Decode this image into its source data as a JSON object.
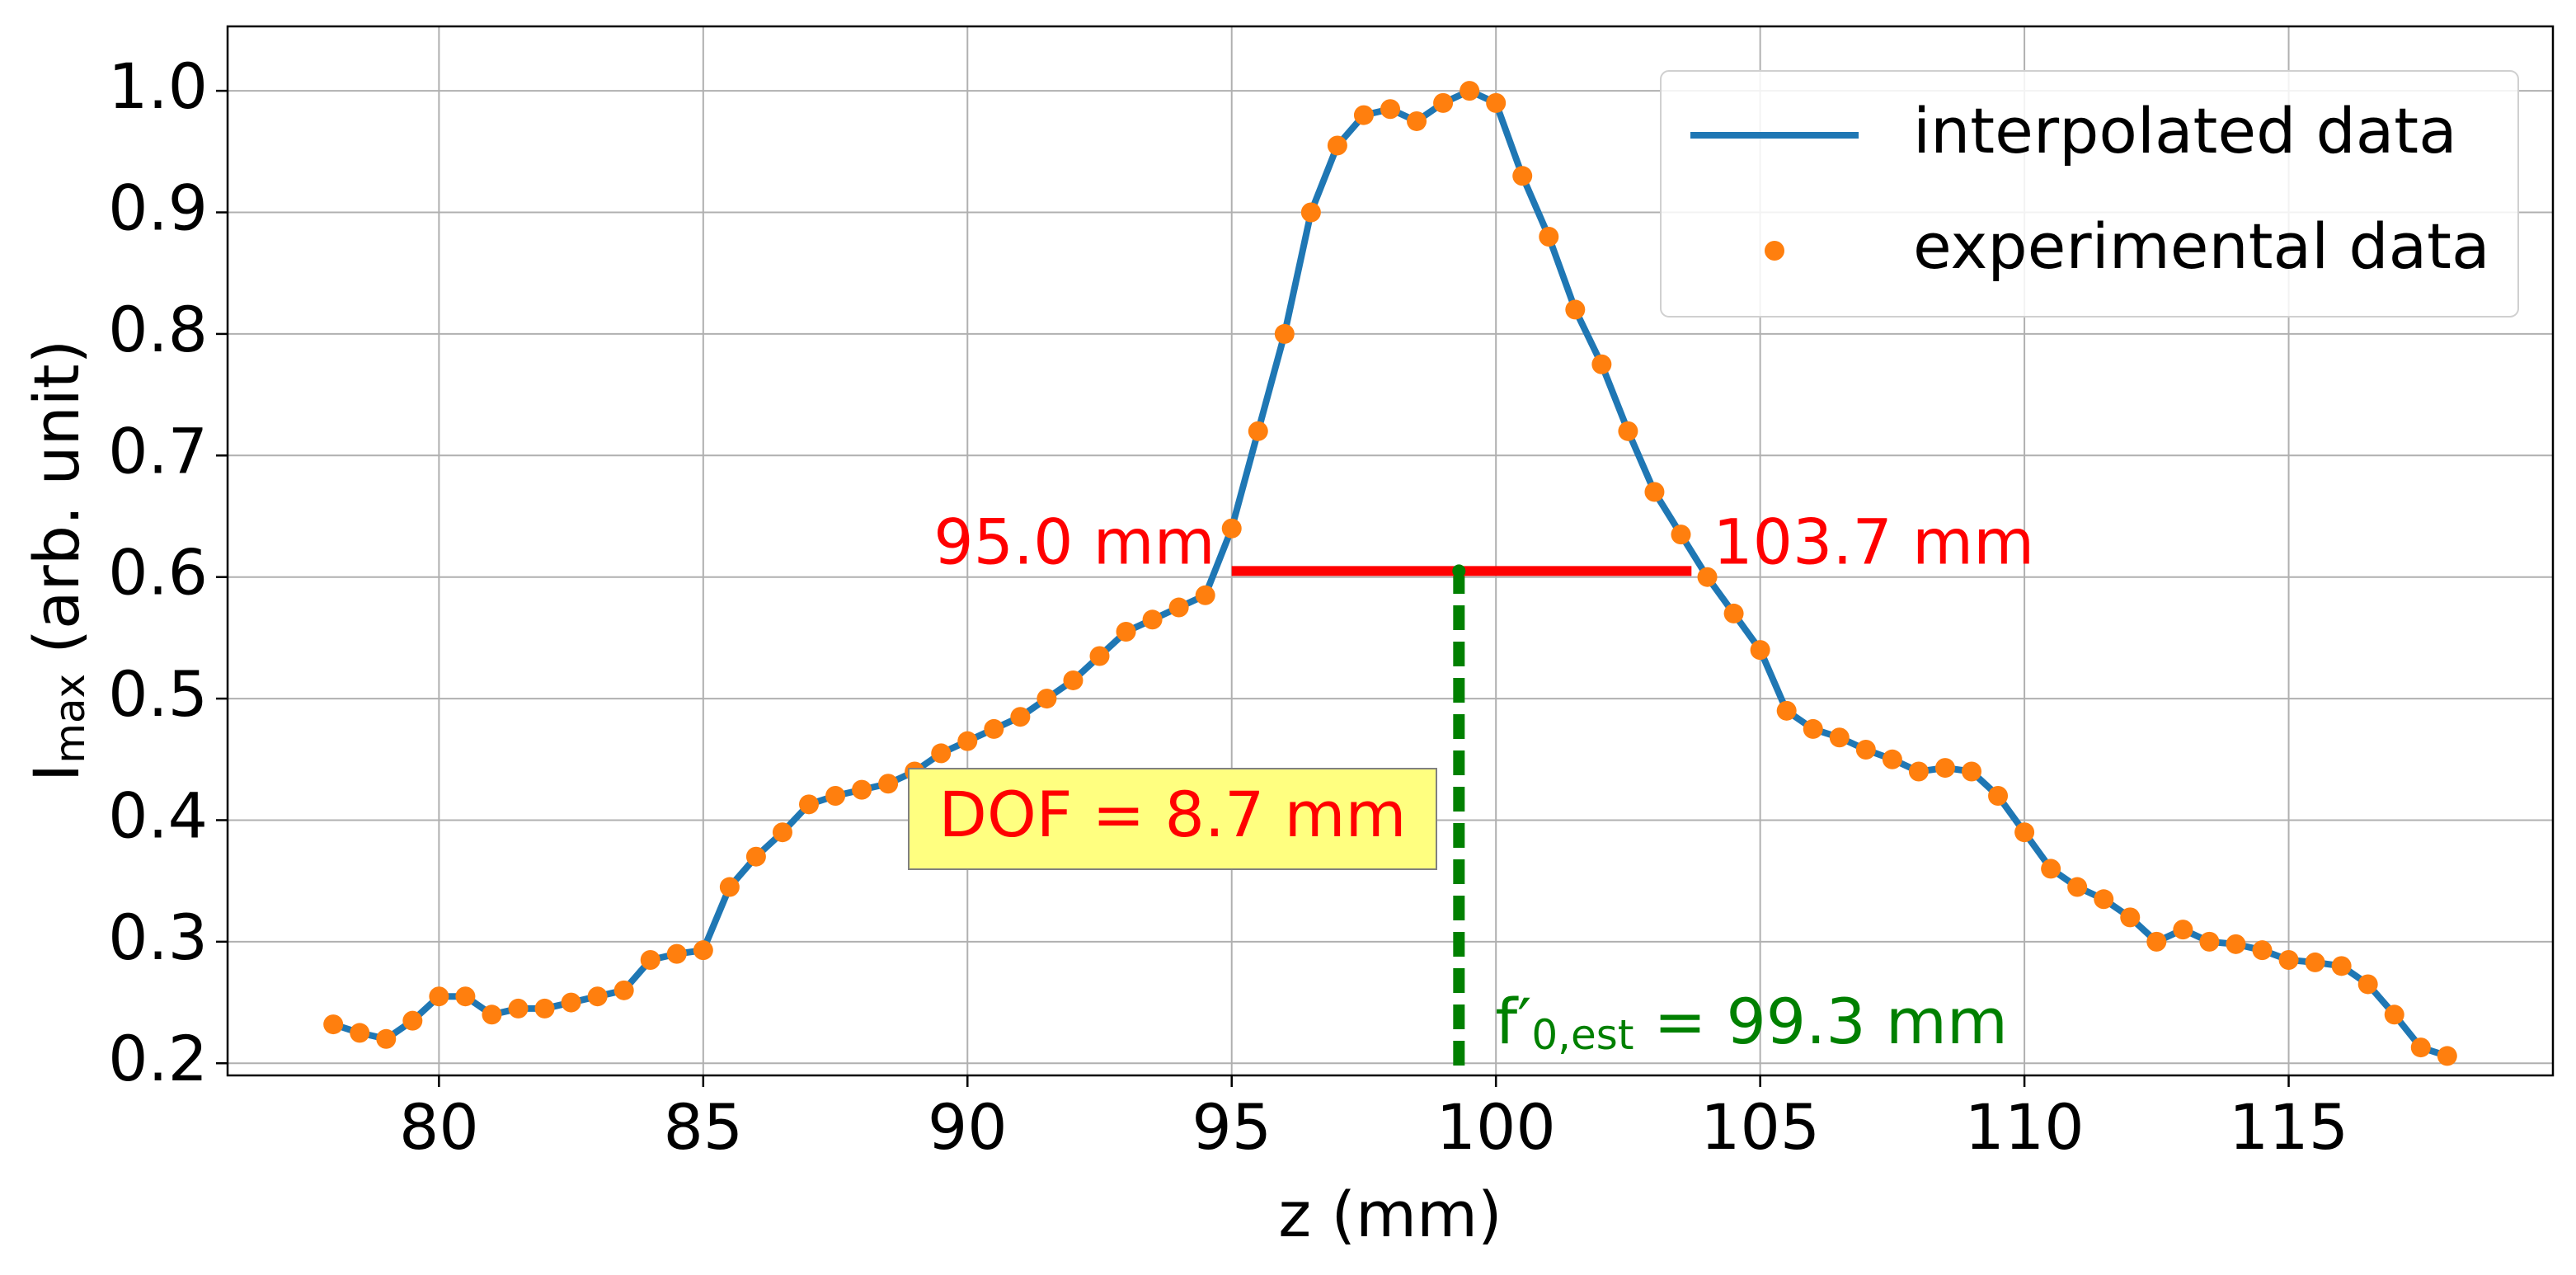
{
  "chart_data": {
    "type": "line",
    "xlabel": "z (mm)",
    "ylabel": {
      "main": "I",
      "sub": "max",
      "rest": " (arb. unit)"
    },
    "x": [
      78.0,
      78.5,
      79.0,
      79.5,
      80.0,
      80.5,
      81.0,
      81.5,
      82.0,
      82.5,
      83.0,
      83.5,
      84.0,
      84.5,
      85.0,
      85.5,
      86.0,
      86.5,
      87.0,
      87.5,
      88.0,
      88.5,
      89.0,
      89.5,
      90.0,
      90.5,
      91.0,
      91.5,
      92.0,
      92.5,
      93.0,
      93.5,
      94.0,
      94.5,
      95.0,
      95.5,
      96.0,
      96.5,
      97.0,
      97.5,
      98.0,
      98.5,
      99.0,
      99.5,
      100.0,
      100.5,
      101.0,
      101.5,
      102.0,
      102.5,
      103.0,
      103.5,
      104.0,
      104.5,
      105.0,
      105.5,
      106.0,
      106.5,
      107.0,
      107.5,
      108.0,
      108.5,
      109.0,
      109.5,
      110.0,
      110.5,
      111.0,
      111.5,
      112.0,
      112.5,
      113.0,
      113.5,
      114.0,
      114.5,
      115.0,
      115.5,
      116.0,
      116.5,
      117.0,
      117.5,
      118.0
    ],
    "series": [
      {
        "name": "interpolated data",
        "color": "#1f77b4",
        "style": "line",
        "values": [
          0.232,
          0.225,
          0.22,
          0.235,
          0.255,
          0.255,
          0.24,
          0.245,
          0.245,
          0.25,
          0.255,
          0.26,
          0.285,
          0.29,
          0.293,
          0.345,
          0.37,
          0.39,
          0.413,
          0.42,
          0.425,
          0.43,
          0.44,
          0.455,
          0.465,
          0.475,
          0.485,
          0.5,
          0.515,
          0.535,
          0.555,
          0.565,
          0.575,
          0.585,
          0.64,
          0.72,
          0.8,
          0.9,
          0.955,
          0.98,
          0.985,
          0.975,
          0.99,
          1.0,
          0.99,
          0.93,
          0.88,
          0.82,
          0.775,
          0.72,
          0.67,
          0.635,
          0.6,
          0.57,
          0.54,
          0.49,
          0.475,
          0.468,
          0.458,
          0.45,
          0.44,
          0.443,
          0.44,
          0.42,
          0.39,
          0.36,
          0.345,
          0.335,
          0.32,
          0.3,
          0.31,
          0.3,
          0.298,
          0.293,
          0.285,
          0.283,
          0.28,
          0.265,
          0.24,
          0.213,
          0.206
        ]
      },
      {
        "name": "experimental data",
        "color": "#ff7f0e",
        "style": "markers",
        "values": [
          0.232,
          0.225,
          0.22,
          0.235,
          0.255,
          0.255,
          0.24,
          0.245,
          0.245,
          0.25,
          0.255,
          0.26,
          0.285,
          0.29,
          0.293,
          0.345,
          0.37,
          0.39,
          0.413,
          0.42,
          0.425,
          0.43,
          0.44,
          0.455,
          0.465,
          0.475,
          0.485,
          0.5,
          0.515,
          0.535,
          0.555,
          0.565,
          0.575,
          0.585,
          0.64,
          0.72,
          0.8,
          0.9,
          0.955,
          0.98,
          0.985,
          0.975,
          0.99,
          1.0,
          0.99,
          0.93,
          0.88,
          0.82,
          0.775,
          0.72,
          0.67,
          0.635,
          0.6,
          0.57,
          0.54,
          0.49,
          0.475,
          0.468,
          0.458,
          0.45,
          0.44,
          0.443,
          0.44,
          0.42,
          0.39,
          0.36,
          0.345,
          0.335,
          0.32,
          0.3,
          0.31,
          0.3,
          0.298,
          0.293,
          0.285,
          0.283,
          0.28,
          0.265,
          0.24,
          0.213,
          0.206
        ]
      }
    ],
    "xlim": [
      76,
      120
    ],
    "ylim": [
      0.19,
      1.053
    ],
    "xticks": [
      80,
      85,
      90,
      95,
      100,
      105,
      110,
      115
    ],
    "yticks": [
      0.2,
      0.3,
      0.4,
      0.5,
      0.6,
      0.7,
      0.8,
      0.9,
      {
        "value": 1.0,
        "label": "1.0"
      }
    ],
    "grid": true,
    "legend": "upper right",
    "annotations": {
      "fwhm": {
        "x": [
          95.0,
          103.7
        ],
        "y": 0.605,
        "color": "#ff0000",
        "labels": [
          "95.0 mm",
          "103.7 mm"
        ]
      },
      "dof": {
        "text": "DOF = 8.7 mm",
        "color": "#ff0000",
        "box_color": "#ffff80"
      },
      "focus": {
        "x": 99.3,
        "color": "#008000",
        "label": {
          "main": "f′",
          "sub": "0,est",
          "rest": " = 99.3 mm"
        }
      }
    }
  }
}
